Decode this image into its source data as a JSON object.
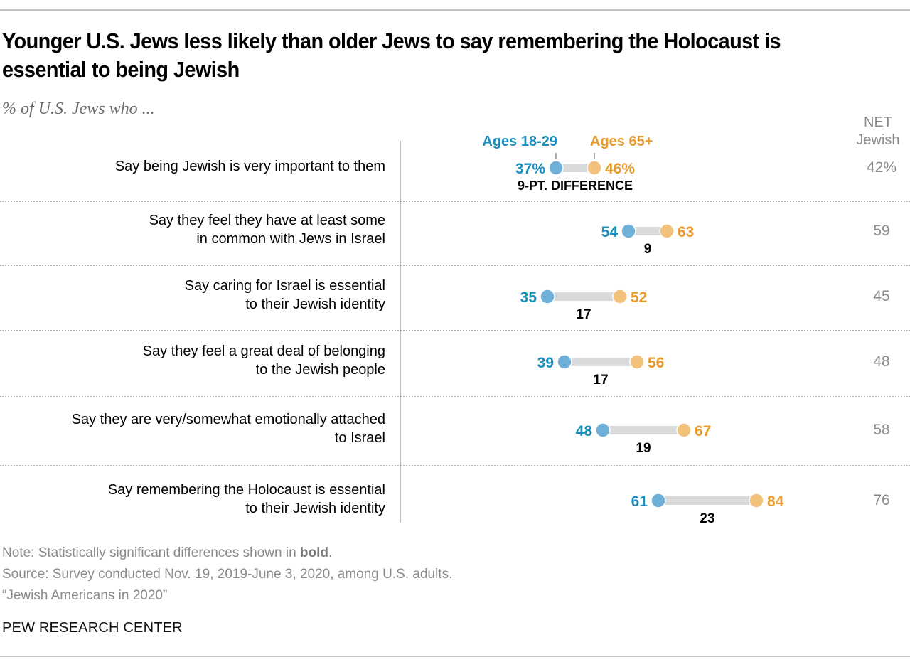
{
  "title": "Younger U.S. Jews less likely than older Jews to say remembering the Holocaust is essential to being Jewish",
  "subtitle": "% of U.S. Jews who ...",
  "net_header_line1": "NET",
  "net_header_line2": "Jewish",
  "footer": {
    "note_prefix": "Note: Statistically significant differences shown in ",
    "note_bold": "bold",
    "note_suffix": ".",
    "source": "Source: Survey conducted Nov. 19, 2019-June 3, 2020, among U.S. adults.",
    "report": "“Jewish Americans in 2020”",
    "brand": "PEW RESEARCH CENTER"
  },
  "chart_data": {
    "type": "dot-range",
    "title": "Younger U.S. Jews less likely than older Jews to say remembering the Holocaust is essential to being Jewish",
    "subtitle": "% of U.S. Jews who ...",
    "series": [
      {
        "name": "Ages 18-29",
        "color": "#6fb0d8",
        "label_color": "#1a8fc0",
        "values": [
          37,
          54,
          35,
          39,
          48,
          61
        ]
      },
      {
        "name": "Ages 65+",
        "color": "#f2c27c",
        "label_color": "#e89a2c",
        "values": [
          46,
          63,
          52,
          56,
          67,
          84
        ]
      }
    ],
    "categories": [
      "Say being Jewish is very important to them",
      "Say they feel they have at least some in common with Jews in Israel",
      "Say caring for Israel is essential to their Jewish identity",
      "Say they feel a great deal of belonging to the Jewish people",
      "Say they are very/somewhat emotionally attached to Israel",
      "Say remembering the Holocaust is essential to their Jewish identity"
    ],
    "category_lines": [
      [
        "Say being Jewish is very important to them"
      ],
      [
        "Say they feel they have at least some",
        "in common with Jews in Israel"
      ],
      [
        "Say caring for Israel is essential",
        "to their Jewish identity"
      ],
      [
        "Say they feel a great deal of belonging",
        "to the Jewish people"
      ],
      [
        "Say they are very/somewhat emotionally attached",
        "to Israel"
      ],
      [
        "Say remembering the Holocaust is essential",
        "to their Jewish identity"
      ]
    ],
    "differences": [
      9,
      9,
      17,
      17,
      19,
      23
    ],
    "first_difference_label": "9-PT. DIFFERENCE",
    "first_row_value_suffix": "%",
    "net_jewish": [
      42,
      59,
      45,
      48,
      58,
      76
    ],
    "net_first_suffix": "%",
    "xlim": [
      0,
      100
    ],
    "legend": "inline-top"
  }
}
